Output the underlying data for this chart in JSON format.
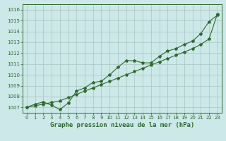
{
  "title": "Graphe pression niveau de la mer (hPa)",
  "background_color": "#cce8e8",
  "grid_color": "#b0c8c8",
  "line_color": "#2d6a2d",
  "xlim": [
    -0.5,
    23.5
  ],
  "ylim": [
    1006.5,
    1016.5
  ],
  "yticks": [
    1007,
    1008,
    1009,
    1010,
    1011,
    1012,
    1013,
    1014,
    1015,
    1016
  ],
  "xticks": [
    0,
    1,
    2,
    3,
    4,
    5,
    6,
    7,
    8,
    9,
    10,
    11,
    12,
    13,
    14,
    15,
    16,
    17,
    18,
    19,
    20,
    21,
    22,
    23
  ],
  "xlabels": [
    "0",
    "1",
    "2",
    "3",
    "4",
    "5",
    "6",
    "7",
    "8",
    "9",
    "10",
    "11",
    "12",
    "13",
    "14",
    "15",
    "16",
    "17",
    "18",
    "19",
    "20",
    "21",
    "22",
    "23"
  ],
  "series1": {
    "x": [
      0,
      1,
      2,
      3,
      4,
      5,
      6,
      7,
      8,
      9,
      10,
      11,
      12,
      13,
      14,
      15,
      16,
      17,
      18,
      19,
      20,
      21,
      22,
      23
    ],
    "y": [
      1007.0,
      1007.3,
      1007.5,
      1007.2,
      1006.8,
      1007.4,
      1008.5,
      1008.8,
      1009.3,
      1009.4,
      1010.0,
      1010.7,
      1011.3,
      1011.3,
      1011.1,
      1011.1,
      1011.7,
      1012.2,
      1012.4,
      1012.8,
      1013.1,
      1013.8,
      1014.9,
      1015.5
    ]
  },
  "series2": {
    "x": [
      0,
      1,
      2,
      3,
      4,
      5,
      6,
      7,
      8,
      9,
      10,
      11,
      12,
      13,
      14,
      15,
      16,
      17,
      18,
      19,
      20,
      21,
      22,
      23
    ],
    "y": [
      1007.0,
      1007.15,
      1007.3,
      1007.45,
      1007.6,
      1007.9,
      1008.2,
      1008.5,
      1008.8,
      1009.1,
      1009.4,
      1009.7,
      1010.0,
      1010.3,
      1010.6,
      1010.9,
      1011.2,
      1011.5,
      1011.8,
      1012.1,
      1012.4,
      1012.8,
      1013.3,
      1015.6
    ]
  },
  "ylabel_fontsize": 5.0,
  "xlabel_fontsize": 5.0,
  "title_fontsize": 6.5
}
